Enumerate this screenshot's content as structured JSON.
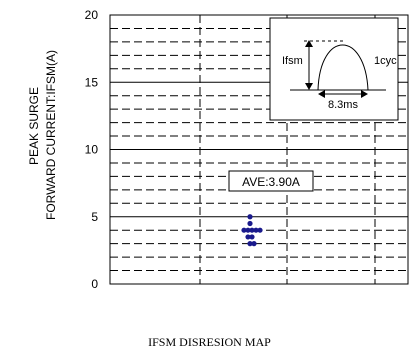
{
  "chart_data": {
    "type": "scatter",
    "title": "IFSM DISRESION MAP",
    "ylabel": [
      "PEAK SURGE",
      "FORWARD CURRENT:IFSM(A)"
    ],
    "xlabel": "",
    "ylim": [
      0,
      20
    ],
    "y_ticks": [
      "0",
      "5",
      "10",
      "15",
      "20"
    ],
    "grid": true,
    "series": [
      {
        "marker_color": "#1a1a8c",
        "points": [
          {
            "x": 0,
            "y": 5.0
          },
          {
            "x": 0,
            "y": 4.5
          },
          {
            "x": -1.5,
            "y": 4.0
          },
          {
            "x": -0.5,
            "y": 4.0
          },
          {
            "x": 0.5,
            "y": 4.0
          },
          {
            "x": 1.5,
            "y": 4.0
          },
          {
            "x": 2.5,
            "y": 4.0
          },
          {
            "x": -0.5,
            "y": 3.5
          },
          {
            "x": 0.5,
            "y": 3.5
          },
          {
            "x": 0,
            "y": 3.0
          },
          {
            "x": 1,
            "y": 3.0
          }
        ]
      }
    ],
    "annotations": {
      "average_label": "AVE:3.90A",
      "inset_ifsm": "Ifsm",
      "inset_cycle": "1cyc",
      "inset_time": "8.3ms"
    }
  }
}
